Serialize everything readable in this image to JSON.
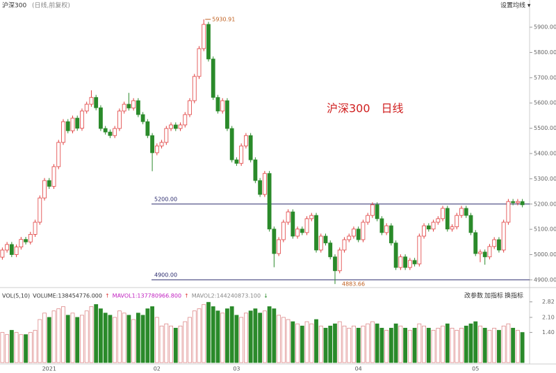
{
  "chart_data": {
    "type": "candlestick",
    "title": "沪深300",
    "subtitle": "(日线,前复权)",
    "annotation": "沪深300　日线",
    "ma_settings": "设置均线 ▾",
    "up_color": "#e03c3c",
    "down_color": "#2a8a2a",
    "categories": [
      null,
      null,
      null,
      null,
      null,
      null,
      null,
      null,
      null,
      null,
      "2021",
      null,
      null,
      null,
      null,
      null,
      null,
      null,
      null,
      null,
      null,
      null,
      null,
      null,
      null,
      null,
      null,
      null,
      null,
      null,
      null,
      null,
      null,
      "02",
      null,
      null,
      null,
      null,
      null,
      null,
      null,
      null,
      null,
      null,
      null,
      null,
      null,
      null,
      null,
      null,
      "03",
      null,
      null,
      null,
      null,
      null,
      null,
      null,
      null,
      null,
      null,
      null,
      null,
      null,
      null,
      null,
      null,
      null,
      null,
      null,
      null,
      null,
      null,
      null,
      null,
      null,
      "04",
      null,
      null,
      null,
      null,
      null,
      null,
      null,
      null,
      null,
      null,
      null,
      null,
      null,
      null,
      null,
      null,
      null,
      null,
      null,
      null,
      null,
      null,
      null,
      null,
      "05",
      null,
      null,
      null,
      null,
      null,
      null,
      null,
      null,
      null,
      null
    ],
    "open": [
      4990,
      5018,
      5040,
      5000,
      5030,
      5060,
      5050,
      5080,
      5128,
      5224,
      5293,
      5270,
      5348,
      5444,
      5526,
      5490,
      5540,
      5500,
      5568,
      5595,
      5622,
      5581,
      5499,
      5485,
      5471,
      5499,
      5568,
      5595,
      5580,
      5609,
      5554,
      5526,
      5471,
      5403,
      5430,
      5444,
      5499,
      5513,
      5499,
      5513,
      5554,
      5609,
      5705,
      5815,
      5911,
      5774,
      5622,
      5568,
      5609,
      5499,
      5375,
      5361,
      5430,
      5471,
      5375,
      5293,
      5238,
      5321,
      5101,
      5004,
      5059,
      5128,
      5169,
      5073,
      5101,
      5087,
      5142,
      5155,
      5018,
      5073,
      5046,
      4991,
      4936,
      5018,
      5059,
      5073,
      5101,
      5059,
      5128,
      5155,
      5197,
      5142,
      5087,
      5114,
      5046,
      4949,
      4991,
      4949,
      4977,
      4963,
      5073,
      5114,
      5101,
      5128,
      5142,
      5183,
      5101,
      5110,
      5155,
      5183,
      5155,
      5087,
      5004,
      5010,
      4991,
      5032,
      5059,
      5018,
      5128,
      5210,
      5205,
      5210
    ],
    "high": [
      5028,
      5050,
      5050,
      5040,
      5070,
      5070,
      5090,
      5138,
      5234,
      5303,
      5303,
      5358,
      5454,
      5536,
      5536,
      5550,
      5550,
      5578,
      5605,
      5650,
      5632,
      5591,
      5509,
      5495,
      5509,
      5578,
      5605,
      5640,
      5619,
      5619,
      5564,
      5536,
      5481,
      5440,
      5454,
      5509,
      5523,
      5523,
      5523,
      5564,
      5619,
      5715,
      5825,
      5930.91,
      5921,
      5784,
      5632,
      5619,
      5619,
      5509,
      5385,
      5440,
      5481,
      5481,
      5385,
      5303,
      5331,
      5331,
      5111,
      5069,
      5138,
      5179,
      5179,
      5111,
      5111,
      5152,
      5165,
      5165,
      5083,
      5083,
      5056,
      5001,
      5028,
      5069,
      5083,
      5111,
      5111,
      5138,
      5165,
      5207,
      5207,
      5152,
      5124,
      5124,
      5056,
      5001,
      5001,
      4987,
      4987,
      5083,
      5124,
      5124,
      5138,
      5152,
      5193,
      5193,
      5120,
      5165,
      5193,
      5193,
      5165,
      5097,
      5020,
      5020,
      5042,
      5069,
      5069,
      5138,
      5220,
      5220,
      5220,
      5220
    ],
    "low": [
      4980,
      5008,
      4990,
      4990,
      5020,
      5040,
      5040,
      5070,
      5118,
      5214,
      5260,
      5260,
      5338,
      5434,
      5480,
      5480,
      5490,
      5490,
      5558,
      5585,
      5571,
      5489,
      5475,
      5461,
      5461,
      5489,
      5558,
      5570,
      5570,
      5544,
      5516,
      5461,
      5330,
      5393,
      5420,
      5434,
      5489,
      5489,
      5489,
      5503,
      5544,
      5599,
      5695,
      5805,
      5764,
      5612,
      5558,
      5558,
      5489,
      5365,
      5351,
      5351,
      5420,
      5365,
      5283,
      5228,
      5228,
      5091,
      4950,
      4994,
      5049,
      5118,
      5063,
      5063,
      5077,
      5077,
      5132,
      5008,
      5008,
      5036,
      4981,
      4883.66,
      4926,
      5008,
      5049,
      5063,
      5049,
      5049,
      5118,
      5145,
      5132,
      5077,
      5077,
      5036,
      4939,
      4939,
      4939,
      4939,
      4953,
      4953,
      5063,
      5091,
      5091,
      5118,
      5132,
      5091,
      5091,
      5100,
      5145,
      5145,
      5077,
      4994,
      4970,
      4960,
      4981,
      5022,
      5008,
      5008,
      5118,
      5195,
      5195,
      5187
    ],
    "close": [
      5018,
      5040,
      5000,
      5030,
      5060,
      5050,
      5080,
      5128,
      5224,
      5293,
      5270,
      5348,
      5444,
      5526,
      5490,
      5540,
      5500,
      5568,
      5595,
      5622,
      5581,
      5499,
      5485,
      5471,
      5499,
      5568,
      5595,
      5580,
      5609,
      5554,
      5526,
      5471,
      5403,
      5430,
      5444,
      5499,
      5513,
      5499,
      5513,
      5554,
      5609,
      5705,
      5815,
      5911,
      5774,
      5622,
      5568,
      5609,
      5499,
      5375,
      5361,
      5430,
      5471,
      5375,
      5293,
      5238,
      5321,
      5101,
      5004,
      5059,
      5128,
      5169,
      5073,
      5101,
      5087,
      5142,
      5155,
      5018,
      5073,
      5046,
      4991,
      4936,
      5018,
      5059,
      5073,
      5101,
      5059,
      5128,
      5155,
      5197,
      5142,
      5087,
      5114,
      5046,
      4949,
      4991,
      4949,
      4977,
      4963,
      5073,
      5114,
      5101,
      5128,
      5142,
      5183,
      5101,
      5110,
      5155,
      5183,
      5155,
      5087,
      5004,
      5010,
      4991,
      5032,
      5059,
      5018,
      5128,
      5210,
      5205,
      5210,
      5197
    ],
    "ylim": [
      4875,
      5958
    ],
    "yticks": [
      {
        "value": 4900,
        "label": "4900.00"
      },
      {
        "value": 5000,
        "label": "5000.00"
      },
      {
        "value": 5100,
        "label": "5100.00"
      },
      {
        "value": 5200,
        "label": "5200.00"
      },
      {
        "value": 5300,
        "label": "5300.00"
      },
      {
        "value": 5400,
        "label": "5400.00"
      },
      {
        "value": 5500,
        "label": "5500.00"
      },
      {
        "value": 5600,
        "label": "5600.00"
      },
      {
        "value": 5700,
        "label": "5700.00"
      },
      {
        "value": 5800,
        "label": "5800.00"
      },
      {
        "value": 5900,
        "label": "5900.00"
      }
    ],
    "hlines": [
      {
        "value": 5200,
        "label": "5200.00"
      },
      {
        "value": 4900,
        "label": "4900.00"
      }
    ],
    "volume": {
      "legend": [
        {
          "text": "VOL(5,10)",
          "color": "#333333"
        },
        {
          "text": "VOLUME:138454776.000",
          "color": "#333333"
        },
        {
          "text": "↑",
          "color": "#e03c3c"
        },
        {
          "text": "MAVOL1:137780966.800",
          "color": "#c020c0"
        },
        {
          "text": "↑",
          "color": "#e03c3c"
        },
        {
          "text": "MAVOL2:144240873.100",
          "color": "#888888"
        },
        {
          "text": "↓",
          "color": "#2a8a2a"
        }
      ],
      "buttons": [
        "改参数",
        "加指标",
        "换指标"
      ],
      "values": [
        1.4,
        1.3,
        1.5,
        1.4,
        1.3,
        1.3,
        1.4,
        1.5,
        2.0,
        2.3,
        2.1,
        2.4,
        2.5,
        2.6,
        2.2,
        2.3,
        2.1,
        2.2,
        2.4,
        2.6,
        2.7,
        2.5,
        2.3,
        2.2,
        2.1,
        2.4,
        2.3,
        2.2,
        2.0,
        2.3,
        2.2,
        2.5,
        2.6,
        2.1,
        1.7,
        1.8,
        1.7,
        1.6,
        1.7,
        1.9,
        2.1,
        2.4,
        2.5,
        2.7,
        2.8,
        2.6,
        2.4,
        2.3,
        2.5,
        2.6,
        2.2,
        2.1,
        2.3,
        2.4,
        2.5,
        2.3,
        2.4,
        2.6,
        2.5,
        2.2,
        2.1,
        2.0,
        1.9,
        1.8,
        1.7,
        1.9,
        1.8,
        2.0,
        1.7,
        1.6,
        1.7,
        1.8,
        1.9,
        1.7,
        1.6,
        1.7,
        1.6,
        1.7,
        1.8,
        1.9,
        1.8,
        1.6,
        1.5,
        1.6,
        1.8,
        1.7,
        1.6,
        1.5,
        1.6,
        1.8,
        1.7,
        1.6,
        1.5,
        1.6,
        1.7,
        1.8,
        1.6,
        1.5,
        1.6,
        1.7,
        1.8,
        1.9,
        1.7,
        1.6,
        1.5,
        1.6,
        1.5,
        1.7,
        1.8,
        1.6,
        1.5,
        1.4
      ],
      "ylim": [
        0,
        3.13
      ],
      "yticks": [
        {
          "value": 1.4,
          "label": "1.40"
        },
        {
          "value": 2.1,
          "label": "2.10"
        },
        2.82
      ]
    }
  }
}
